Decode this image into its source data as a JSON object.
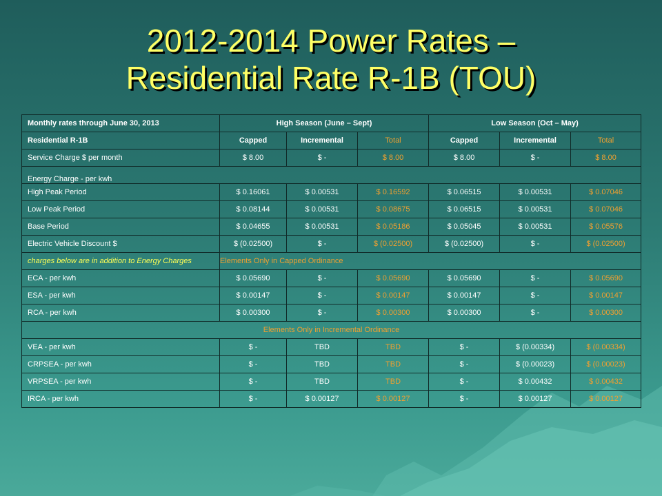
{
  "title_line1": "2012-2014 Power Rates –",
  "title_line2": "Residential Rate R-1B (TOU)",
  "header": {
    "monthly_label": "Monthly rates through June 30, 2013",
    "high_season": "High Season (June – Sept)",
    "low_season": "Low Season (Oct – May)",
    "rate_name": "Residential R-1B",
    "capped": "Capped",
    "incremental": "Incremental",
    "total": "Total"
  },
  "service": {
    "label": "Service Charge $ per month",
    "v": [
      "$      8.00",
      "$      -",
      "$      8.00",
      "$      8.00",
      "$      -",
      "$      8.00"
    ]
  },
  "energy_label": "Energy Charge - per kwh",
  "energy_rows": [
    {
      "label": "High Peak Period",
      "v": [
        "$ 0.16061",
        "$   0.00531",
        "$ 0.16592",
        "$ 0.06515",
        "$   0.00531",
        "$ 0.07046"
      ]
    },
    {
      "label": "Low Peak Period",
      "v": [
        "$ 0.08144",
        "$   0.00531",
        "$ 0.08675",
        "$ 0.06515",
        "$   0.00531",
        "$ 0.07046"
      ]
    },
    {
      "label": "Base Period",
      "v": [
        "$ 0.04655",
        "$   0.00531",
        "$ 0.05186",
        "$ 0.05045",
        "$   0.00531",
        "$ 0.05576"
      ]
    },
    {
      "label": "Electric Vehicle Discount $",
      "v": [
        "$ (0.02500)",
        "$         -",
        "$ (0.02500)",
        "$ (0.02500)",
        "$         -",
        "$ (0.02500)"
      ]
    }
  ],
  "capped_note": "charges below are in addition to Energy Charges",
  "capped_heading": "Elements Only in Capped Ordinance",
  "capped_rows": [
    {
      "label": "ECA - per kwh",
      "v": [
        "$ 0.05690",
        "$         -",
        "$ 0.05690",
        "$ 0.05690",
        "$         -",
        "$ 0.05690"
      ]
    },
    {
      "label": "ESA - per kwh",
      "v": [
        "$ 0.00147",
        "$         -",
        "$ 0.00147",
        "$ 0.00147",
        "$         -",
        "$ 0.00147"
      ]
    },
    {
      "label": "RCA - per kwh",
      "v": [
        "$ 0.00300",
        "$         -",
        "$ 0.00300",
        "$ 0.00300",
        "$         -",
        "$ 0.00300"
      ]
    }
  ],
  "incremental_heading": "Elements Only in Incremental Ordinance",
  "incremental_rows": [
    {
      "label": "VEA - per kwh",
      "v": [
        "$         -",
        "TBD",
        "TBD",
        "$         -",
        "$  (0.00334)",
        "$ (0.00334)"
      ]
    },
    {
      "label": "CRPSEA - per kwh",
      "v": [
        "$         -",
        "TBD",
        "TBD",
        "$         -",
        "$  (0.00023)",
        "$ (0.00023)"
      ]
    },
    {
      "label": "VRPSEA - per kwh",
      "v": [
        "$         -",
        "TBD",
        "TBD",
        "$         -",
        "$   0.00432",
        "$ 0.00432"
      ]
    },
    {
      "label": "IRCA - per kwh",
      "v": [
        "$         -",
        "$ 0.00127",
        "$ 0.00127",
        "$         -",
        "$   0.00127",
        "$ 0.00127"
      ]
    }
  ]
}
